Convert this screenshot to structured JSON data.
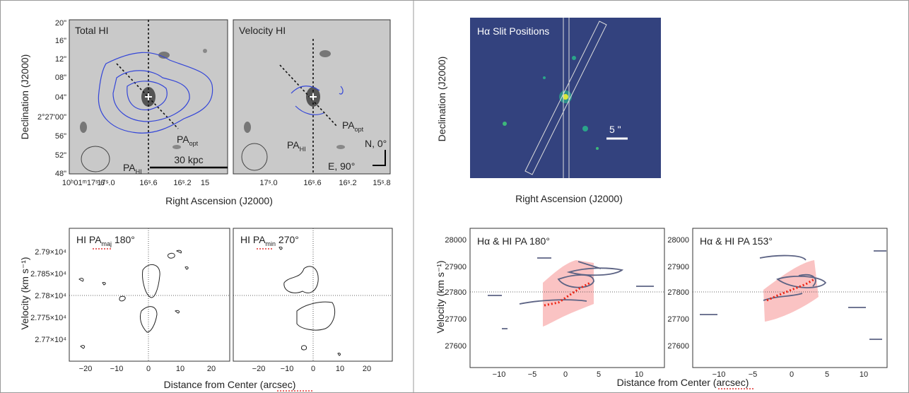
{
  "top_left": {
    "panels": [
      {
        "label": "Total HI",
        "pa_opt": {
          "main": "PA",
          "sub": "opt"
        },
        "pa_hi": {
          "main": "PA",
          "sub": "HI"
        },
        "scale": "30 kpc"
      },
      {
        "label": "Velocity HI",
        "pa_opt": {
          "main": "PA",
          "sub": "opt"
        },
        "pa_hi": {
          "main": "PA",
          "sub": "HI"
        },
        "compass_n": "N, 0°",
        "compass_e": "E, 90°"
      }
    ],
    "y_ticks": [
      "20\"",
      "16\"",
      "12\"",
      "08\"",
      "04\"",
      "2°27'00\"",
      "56\"",
      "52\"",
      "48\""
    ],
    "x_ticks_left": [
      "10ʰ01ᵐ17ˢ.6",
      "17ˢ.0",
      "16ˢ.6",
      "16ˢ.2",
      "15"
    ],
    "x_ticks_right": [
      "17ˢ.0",
      "16ˢ.6",
      "16ˢ.2",
      "15ˢ.8"
    ],
    "x_label": "Right Ascension (J2000)",
    "y_label": "Declination (J2000)"
  },
  "top_right": {
    "label": "Hα Slit Positions",
    "scale": "5 \"",
    "x_label": "Right Ascension (J2000)",
    "y_label": "Declination (J2000)"
  },
  "bottom_left": {
    "panels": [
      {
        "title": {
          "pre": "HI PA",
          "sub": "maj",
          "post": " 180°"
        }
      },
      {
        "title": {
          "pre": "HI PA",
          "sub": "min",
          "post": " 270°"
        }
      }
    ],
    "y_ticks": [
      "2.79×10⁴",
      "2.785×10⁴",
      "2.78×10⁴",
      "2.775×10⁴",
      "2.77×10⁴"
    ],
    "x_ticks": [
      "−20",
      "−10",
      "0",
      "10",
      "20"
    ],
    "x_label": "Distance from Center (arcsec)",
    "y_label": "Velocity (km s⁻¹)"
  },
  "bottom_right": {
    "panels": [
      {
        "title": "Hα & HI PA 180°"
      },
      {
        "title": "Hα & HI PA 153°"
      }
    ],
    "y_ticks": [
      "28000",
      "27900",
      "27800",
      "27700",
      "27600"
    ],
    "x_ticks": [
      "−10",
      "−5",
      "0",
      "5",
      "10"
    ],
    "x_label": "Distance from Center (arcsec)",
    "y_label": "Velocity (km s⁻¹)"
  }
}
